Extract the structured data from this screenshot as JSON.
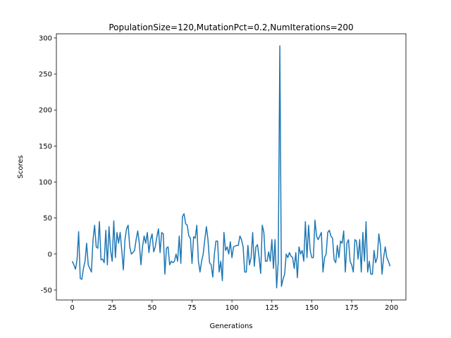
{
  "chart_data": {
    "type": "line",
    "title": "PopulationSize=120,MutationPct=0.2,NumIterations=200",
    "xlabel": "Generations",
    "ylabel": "Scores",
    "color": "#1f77b4",
    "x": [
      0,
      1,
      2,
      3,
      4,
      5,
      6,
      7,
      8,
      9,
      10,
      11,
      12,
      13,
      14,
      15,
      16,
      17,
      18,
      19,
      20,
      21,
      22,
      23,
      24,
      25,
      26,
      27,
      28,
      29,
      30,
      31,
      32,
      33,
      34,
      35,
      36,
      37,
      38,
      39,
      40,
      41,
      42,
      43,
      44,
      45,
      46,
      47,
      48,
      49,
      50,
      51,
      52,
      53,
      54,
      55,
      56,
      57,
      58,
      59,
      60,
      61,
      62,
      63,
      64,
      65,
      66,
      67,
      68,
      69,
      70,
      71,
      72,
      73,
      74,
      75,
      76,
      77,
      78,
      79,
      80,
      81,
      82,
      83,
      84,
      85,
      86,
      87,
      88,
      89,
      90,
      91,
      92,
      93,
      94,
      95,
      96,
      97,
      98,
      99,
      100,
      101,
      102,
      103,
      104,
      105,
      106,
      107,
      108,
      109,
      110,
      111,
      112,
      113,
      114,
      115,
      116,
      117,
      118,
      119,
      120,
      121,
      122,
      123,
      124,
      125,
      126,
      127,
      128,
      129,
      130,
      131,
      132,
      133,
      134,
      135,
      136,
      137,
      138,
      139,
      140,
      141,
      142,
      143,
      144,
      145,
      146,
      147,
      148,
      149,
      150,
      151,
      152,
      153,
      154,
      155,
      156,
      157,
      158,
      159,
      160,
      161,
      162,
      163,
      164,
      165,
      166,
      167,
      168,
      169,
      170,
      171,
      172,
      173,
      174,
      175,
      176,
      177,
      178,
      179,
      180,
      181,
      182,
      183,
      184,
      185,
      186,
      187,
      188,
      189,
      190,
      191,
      192,
      193,
      194,
      195,
      196,
      197,
      198,
      199
    ],
    "values": [
      -10,
      -15,
      -21,
      -8,
      31,
      -34,
      -35,
      -20,
      -10,
      15,
      -15,
      -20,
      -25,
      20,
      40,
      10,
      8,
      45,
      -8,
      -7,
      -12,
      33,
      -15,
      38,
      5,
      -10,
      46,
      -5,
      30,
      15,
      30,
      5,
      -22,
      20,
      35,
      40,
      10,
      0,
      2,
      5,
      20,
      32,
      15,
      -15,
      10,
      25,
      15,
      30,
      2,
      20,
      28,
      3,
      10,
      24,
      35,
      2,
      30,
      28,
      -28,
      8,
      10,
      -15,
      -10,
      -12,
      -10,
      0,
      -10,
      25,
      -13,
      52,
      56,
      42,
      40,
      25,
      22,
      -13,
      24,
      22,
      40,
      -10,
      -25,
      -10,
      0,
      20,
      38,
      20,
      -12,
      -15,
      -32,
      0,
      18,
      18,
      -25,
      -10,
      -37,
      30,
      5,
      10,
      0,
      17,
      -5,
      10,
      11,
      12,
      12,
      25,
      20,
      10,
      -25,
      -25,
      12,
      -15,
      -5,
      30,
      -17,
      10,
      13,
      -5,
      -27,
      40,
      30,
      -10,
      -10,
      3,
      -10,
      20,
      -20,
      20,
      -47,
      -10,
      289,
      -45,
      -35,
      -28,
      0,
      -5,
      2,
      -3,
      -5,
      -20,
      2,
      -33,
      10,
      0,
      5,
      -10,
      45,
      -5,
      40,
      5,
      -5,
      -5,
      47,
      25,
      20,
      25,
      30,
      -25,
      -5,
      0,
      30,
      33,
      25,
      22,
      -8,
      -12,
      12,
      -5,
      18,
      15,
      32,
      -25,
      15,
      20,
      -10,
      -15,
      -25,
      20,
      18,
      -7,
      20,
      -25,
      30,
      -10,
      45,
      -25,
      -10,
      -28,
      -28,
      5,
      -12,
      -5,
      28,
      12,
      -28,
      -5,
      10,
      -5,
      -10,
      -17
    ],
    "xlim": [
      -9.95,
      208.95
    ],
    "ylim": [
      -63.8,
      305.8
    ],
    "xticks": [
      0,
      25,
      50,
      75,
      100,
      125,
      150,
      175,
      200
    ],
    "yticks": [
      -50,
      0,
      50,
      100,
      150,
      200,
      250,
      300
    ]
  }
}
